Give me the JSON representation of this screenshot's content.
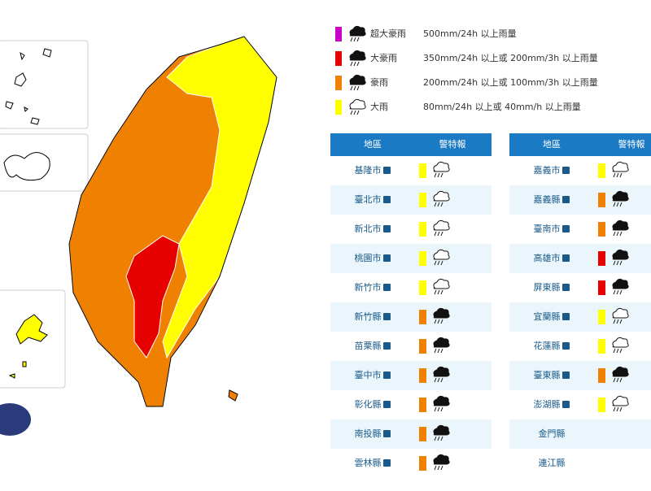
{
  "legend": [
    {
      "color": "#c800c8",
      "label": "超大豪雨",
      "criteria": "500mm/24h 以上雨量"
    },
    {
      "color": "#e60000",
      "label": "大豪雨",
      "criteria": "350mm/24h 以上或 200mm/3h 以上雨量"
    },
    {
      "color": "#f08000",
      "label": "豪雨",
      "criteria": "200mm/24h 以上或 100mm/3h 以上雨量"
    },
    {
      "color": "#ffff00",
      "label": "大雨",
      "criteria": "80mm/24h 以上或 40mm/h 以上雨量"
    }
  ],
  "tables": [
    {
      "header": [
        "地區",
        "警特報"
      ],
      "rows": [
        {
          "name": "基隆市",
          "color": "#ffff00"
        },
        {
          "name": "臺北市",
          "color": "#ffff00"
        },
        {
          "name": "新北市",
          "color": "#ffff00"
        },
        {
          "name": "桃園市",
          "color": "#ffff00"
        },
        {
          "name": "新竹市",
          "color": "#ffff00"
        },
        {
          "name": "新竹縣",
          "color": "#f08000"
        },
        {
          "name": "苗栗縣",
          "color": "#f08000"
        },
        {
          "name": "臺中市",
          "color": "#f08000"
        },
        {
          "name": "彰化縣",
          "color": "#f08000"
        },
        {
          "name": "南投縣",
          "color": "#f08000"
        },
        {
          "name": "雲林縣",
          "color": "#f08000"
        }
      ]
    },
    {
      "header": [
        "地區",
        "警特報"
      ],
      "rows": [
        {
          "name": "嘉義市",
          "color": "#ffff00"
        },
        {
          "name": "嘉義縣",
          "color": "#f08000"
        },
        {
          "name": "臺南市",
          "color": "#f08000"
        },
        {
          "name": "高雄市",
          "color": "#e60000"
        },
        {
          "name": "屏東縣",
          "color": "#e60000"
        },
        {
          "name": "宜蘭縣",
          "color": "#ffff00"
        },
        {
          "name": "花蓮縣",
          "color": "#ffff00"
        },
        {
          "name": "臺東縣",
          "color": "#f08000"
        },
        {
          "name": "澎湖縣",
          "color": "#ffff00"
        },
        {
          "name": "金門縣"
        },
        {
          "name": "連江縣"
        }
      ]
    }
  ]
}
